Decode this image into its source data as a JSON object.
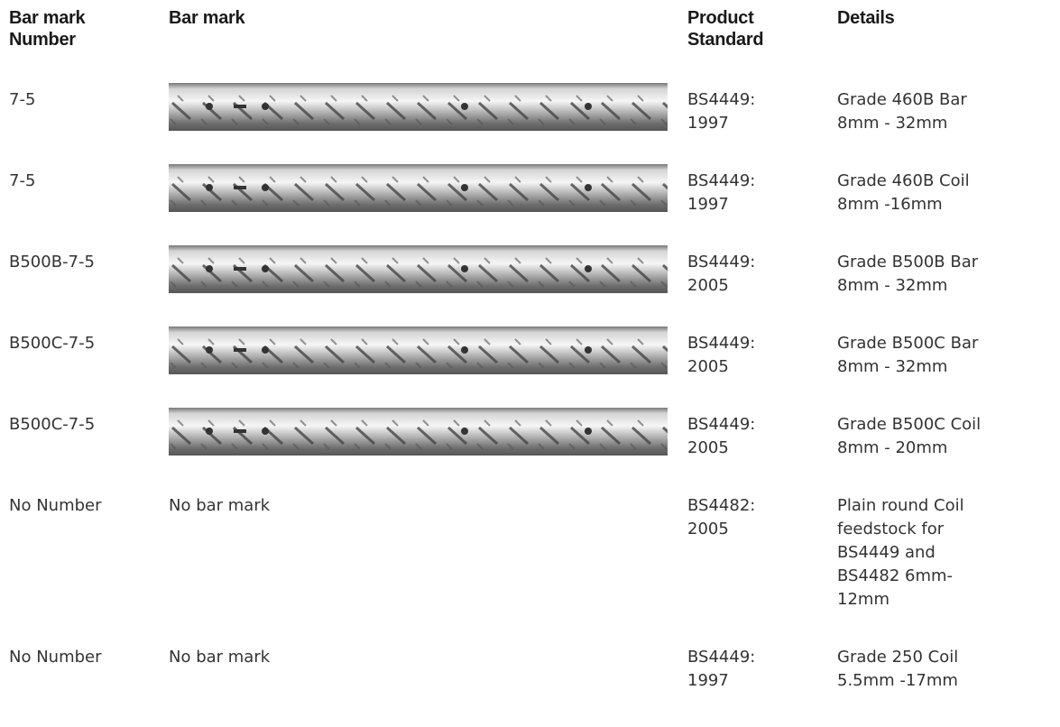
{
  "table": {
    "headers": [
      [
        "Bar mark",
        "Number"
      ],
      [
        "Bar mark"
      ],
      [
        "Product",
        "Standard"
      ],
      [
        "Details"
      ]
    ],
    "rows": [
      {
        "number": "7-5",
        "standard": [
          "BS4449:",
          "1997"
        ],
        "details": [
          "Grade 460B Bar",
          "8mm - 32mm"
        ]
      },
      {
        "number": "7-5",
        "standard": [
          "BS4449:",
          "1997"
        ],
        "details": [
          "Grade 460B Coil",
          "8mm -16mm"
        ]
      },
      {
        "number": "B500B-7-5",
        "standard": [
          "BS4449:",
          "2005"
        ],
        "details": [
          "Grade B500B Bar",
          "8mm - 32mm"
        ]
      },
      {
        "number": "B500C-7-5",
        "standard": [
          "BS4449:",
          "2005"
        ],
        "details": [
          "Grade B500C Bar",
          "8mm - 32mm"
        ]
      },
      {
        "number": "B500C-7-5",
        "standard": [
          "BS4449:",
          "2005"
        ],
        "details": [
          "Grade B500C Coil",
          "8mm - 20mm"
        ]
      },
      {
        "number": "No Number",
        "bar_mark": "No bar mark",
        "standard": [
          "BS4482:",
          "2005"
        ],
        "details": [
          "Plain round Coil",
          "feedstock for",
          "BS4449 and",
          "BS4482 6mm-",
          "12mm"
        ]
      },
      {
        "number": "No Number",
        "bar_mark": "No bar mark",
        "standard": [
          "BS4449:",
          "1997"
        ],
        "details": [
          "Grade 250 Coil",
          "5.5mm -17mm"
        ]
      }
    ]
  }
}
